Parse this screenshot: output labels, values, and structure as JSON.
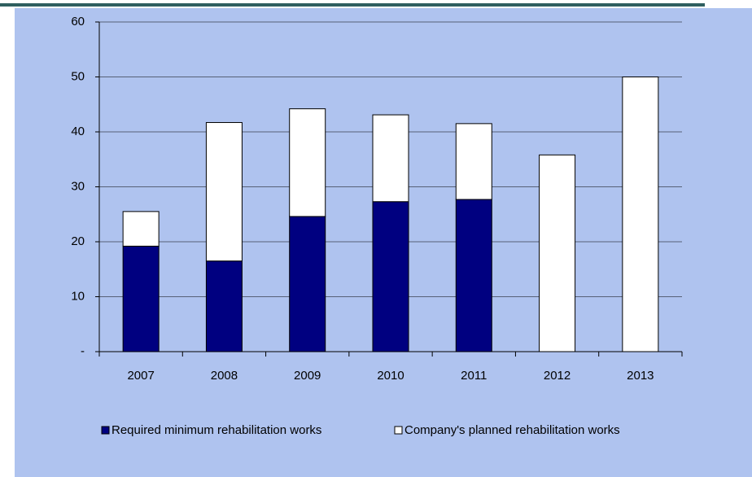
{
  "chart_data": {
    "type": "stacked_bar",
    "categories": [
      "2007",
      "2008",
      "2009",
      "2010",
      "2011",
      "2012",
      "2013"
    ],
    "series": [
      {
        "name": "Required minimum rehabilitation works",
        "color": "#000080",
        "values": [
          19.2,
          16.5,
          24.6,
          27.3,
          27.7,
          0,
          0
        ]
      },
      {
        "name": "Company's planned rehabilitation works",
        "color": "#ffffff",
        "values": [
          6.3,
          25.2,
          19.6,
          15.8,
          13.8,
          35.8,
          50
        ]
      }
    ],
    "ylim": [
      0,
      60
    ],
    "yticks": [
      {
        "value": 0,
        "label": "-"
      },
      10,
      20,
      30,
      40,
      50,
      60
    ],
    "grid": true,
    "legend": "bottom"
  }
}
